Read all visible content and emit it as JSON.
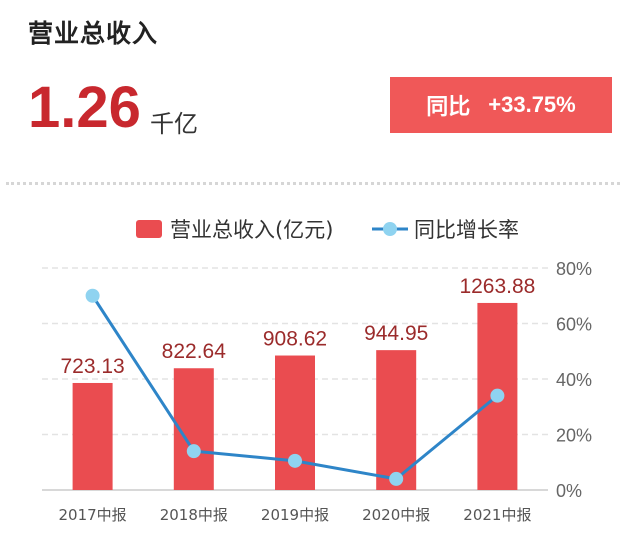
{
  "header": {
    "title": "营业总收入",
    "value": "1.26",
    "unit": "千亿",
    "yoy_label": "同比",
    "yoy_value": "+33.75%"
  },
  "colors": {
    "bar": "#ea4c50",
    "line": "#2e85c8",
    "marker": "#8fd3f0",
    "label": "#9b2b2b",
    "accent": "#c8282e",
    "yoy_box": "#f05858"
  },
  "chart_data": {
    "type": "bar",
    "categories": [
      "2017中报",
      "2018中报",
      "2019中报",
      "2020中报",
      "2021中报"
    ],
    "series": [
      {
        "name": "营业总收入(亿元)",
        "type": "bar",
        "axis": "left",
        "values": [
          723.13,
          822.64,
          908.62,
          944.95,
          1263.88
        ],
        "labels": [
          "723.13",
          "822.64",
          "908.62",
          "944.95",
          "1263.88"
        ]
      },
      {
        "name": "同比增长率",
        "type": "line",
        "axis": "right",
        "values": [
          70.0,
          14.0,
          10.5,
          4.0,
          34.0
        ]
      }
    ],
    "y_left_lim": [
      0,
      1500
    ],
    "y_right_lim": [
      0,
      80
    ],
    "y_right_ticks": [
      "0%",
      "20%",
      "40%",
      "60%",
      "80%"
    ],
    "grid": true,
    "legend": "top"
  }
}
